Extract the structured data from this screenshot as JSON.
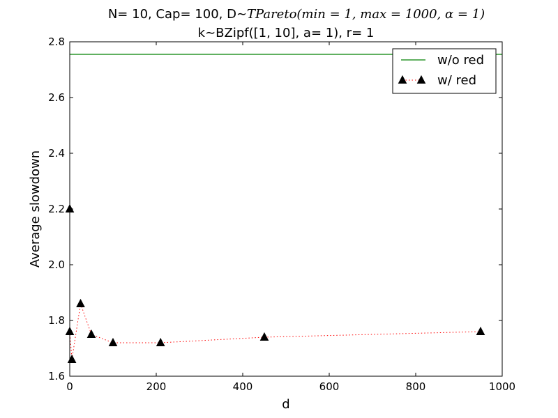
{
  "chart_data": {
    "type": "line",
    "title_line1_prefix": "N= 10, Cap= 100, D",
    "title_line1_math": "∼TPareto(min = 1, max = 1000, α = 1)",
    "title_line2": "k∼BZipf([1, 10], a= 1), r= 1",
    "xlabel": "d",
    "ylabel": "Average slowdown",
    "xlim": [
      0,
      1000
    ],
    "ylim": [
      1.6,
      2.8
    ],
    "xticks": [
      0,
      200,
      400,
      600,
      800,
      1000
    ],
    "xtick_labels": [
      "0",
      "200",
      "400",
      "600",
      "800",
      "1000"
    ],
    "yticks": [
      1.6,
      1.8,
      2.0,
      2.2,
      2.4,
      2.6,
      2.8
    ],
    "ytick_labels": [
      "1.6",
      "1.8",
      "2.0",
      "2.2",
      "2.4",
      "2.6",
      "2.8"
    ],
    "grid": false,
    "legend_position": "top-right",
    "series": [
      {
        "name": "w/o red",
        "style": "solid-line",
        "color": "#008000",
        "x": [
          0,
          1000
        ],
        "y": [
          2.755,
          2.755
        ]
      },
      {
        "name": "w/ red",
        "style": "dotted-line-triangle-markers",
        "color": "#ff0000",
        "marker_color": "#000000",
        "x": [
          0,
          0,
          5,
          25,
          50,
          100,
          210,
          450,
          950
        ],
        "y": [
          2.2,
          1.76,
          1.66,
          1.86,
          1.75,
          1.72,
          1.72,
          1.74,
          1.76
        ]
      }
    ]
  }
}
